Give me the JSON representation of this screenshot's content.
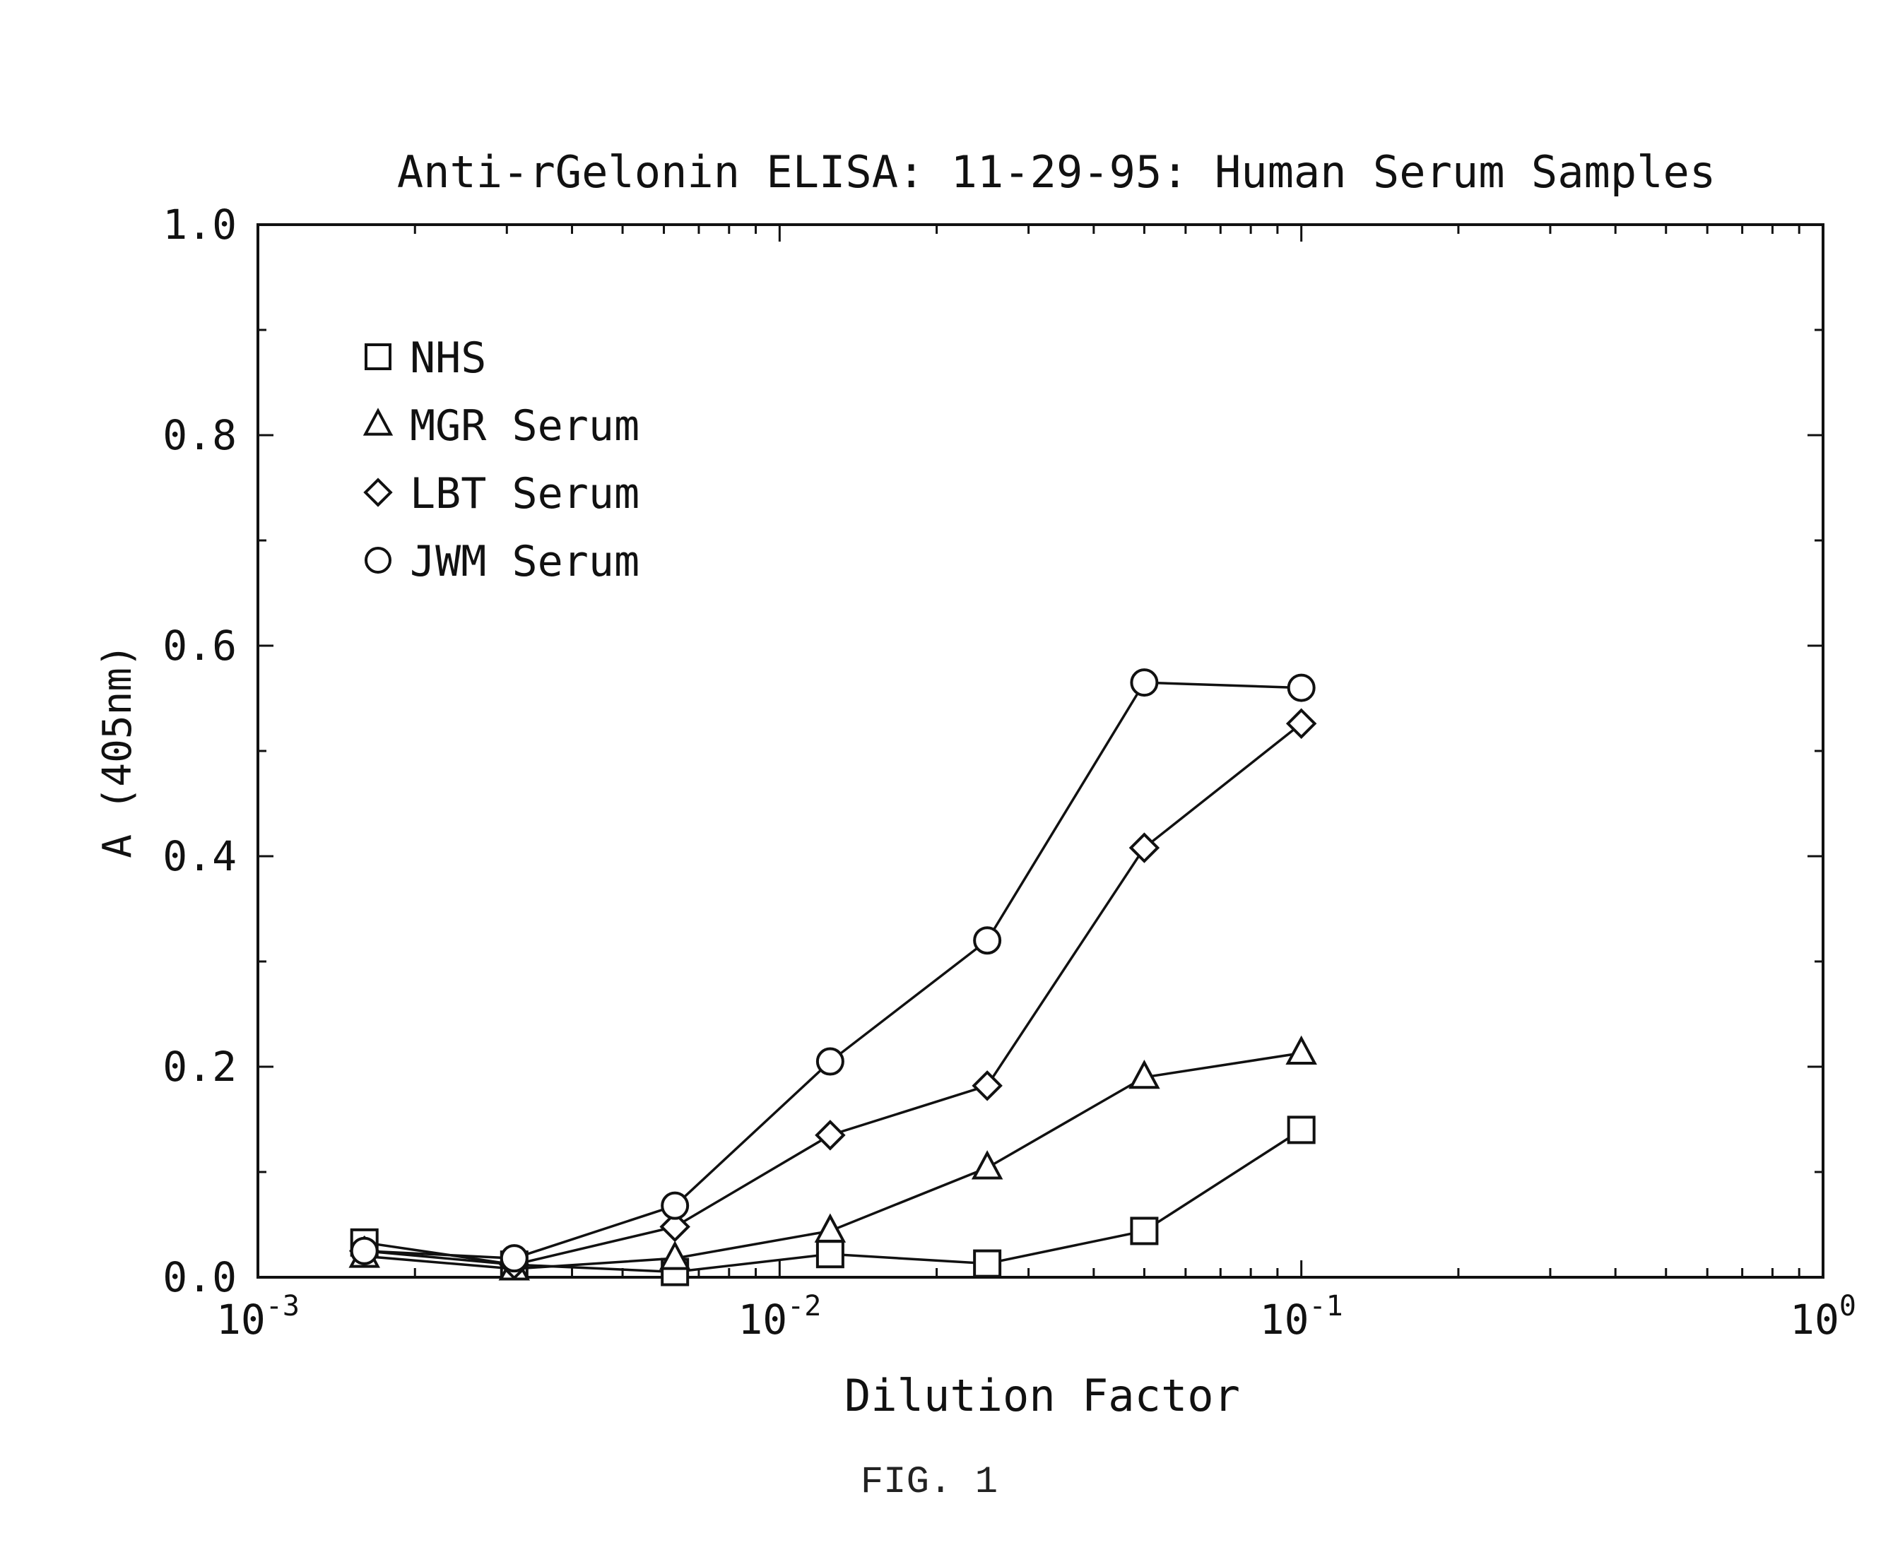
{
  "chart_data": {
    "type": "line",
    "title": "Anti-rGelonin ELISA: 11-29-95: Human Serum Samples",
    "xlabel": "Dilution Factor",
    "ylabel": "A (405nm)",
    "x_scale": "log",
    "xlim": [
      0.001,
      1
    ],
    "ylim": [
      0,
      1
    ],
    "x_tick_labels": [
      {
        "base": "10",
        "exp": "-3"
      },
      {
        "base": "10",
        "exp": "-2"
      },
      {
        "base": "10",
        "exp": "-1"
      },
      {
        "base": "10",
        "exp": "0"
      }
    ],
    "y_tick_labels": [
      "0.0",
      "0.2",
      "0.4",
      "0.6",
      "0.8",
      "1.0"
    ],
    "grid": false,
    "legend_position": "top-left",
    "x": [
      0.0016,
      0.0031,
      0.0063,
      0.0125,
      0.025,
      0.05,
      0.1
    ],
    "series": [
      {
        "name": "NHS",
        "marker": "square",
        "values": [
          0.033,
          0.012,
          0.005,
          0.022,
          0.013,
          0.044,
          0.14
        ]
      },
      {
        "name": "MGR Serum",
        "marker": "triangle",
        "values": [
          0.02,
          0.008,
          0.018,
          0.044,
          0.104,
          0.19,
          0.213
        ]
      },
      {
        "name": "LBT Serum",
        "marker": "diamond",
        "values": [
          0.025,
          0.012,
          0.048,
          0.135,
          0.182,
          0.408,
          0.526
        ]
      },
      {
        "name": "JWM Serum",
        "marker": "circle",
        "values": [
          0.025,
          0.018,
          0.068,
          0.205,
          0.32,
          0.565,
          0.56
        ]
      }
    ]
  },
  "caption": "FIG. 1"
}
